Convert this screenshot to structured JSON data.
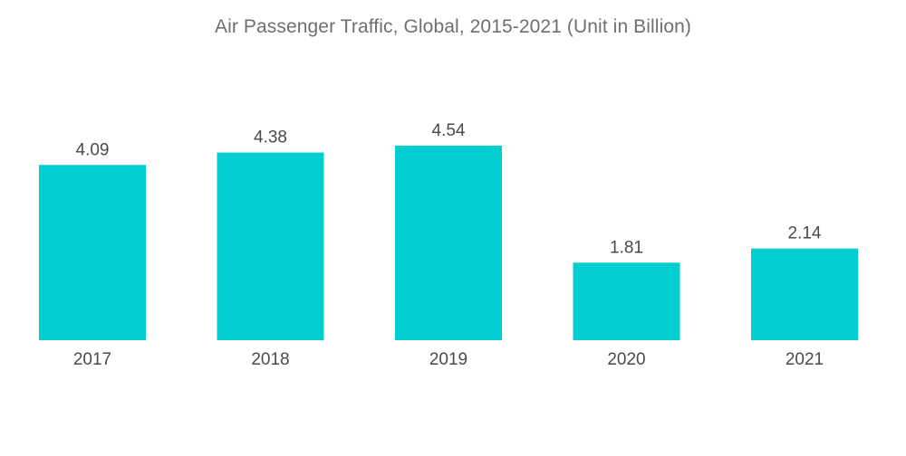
{
  "chart_data": {
    "type": "bar",
    "title": "Air Passenger Traffic, Global, 2015-2021 (Unit in Billion)",
    "categories": [
      "2017",
      "2018",
      "2019",
      "2020",
      "2021"
    ],
    "values": [
      4.09,
      4.38,
      4.54,
      1.81,
      2.14
    ],
    "value_labels": [
      "4.09",
      "4.38",
      "4.54",
      "1.81",
      "2.14"
    ],
    "xlabel": "",
    "ylabel": "",
    "ylim": [
      0,
      4.54
    ],
    "grid": false,
    "legend": "none",
    "bar_color": "#00CED1"
  }
}
